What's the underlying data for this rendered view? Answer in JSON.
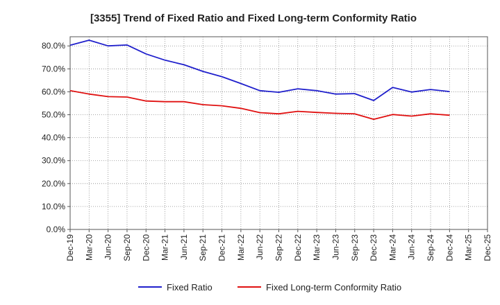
{
  "chart_data": {
    "type": "line",
    "title": "[3355]  Trend of Fixed Ratio and Fixed Long-term Conformity Ratio",
    "xlabel": "",
    "ylabel": "",
    "categories": [
      "Dec-19",
      "Mar-20",
      "Jun-20",
      "Sep-20",
      "Dec-20",
      "Mar-21",
      "Jun-21",
      "Sep-21",
      "Dec-21",
      "Mar-22",
      "Jun-22",
      "Sep-22",
      "Dec-22",
      "Mar-23",
      "Jun-23",
      "Sep-23",
      "Dec-23",
      "Mar-24",
      "Jun-24",
      "Sep-24",
      "Dec-24",
      "Mar-25",
      "Dec-25"
    ],
    "ylim": [
      0,
      84
    ],
    "yticks": [
      0,
      10,
      20,
      30,
      40,
      50,
      60,
      70,
      80
    ],
    "ytick_labels": [
      "0.0%",
      "10.0%",
      "20.0%",
      "30.0%",
      "40.0%",
      "50.0%",
      "60.0%",
      "70.0%",
      "80.0%"
    ],
    "grid": true,
    "legend_position": "bottom",
    "series": [
      {
        "name": "Fixed Ratio",
        "color": "#1f1fcc",
        "values": [
          80.3,
          82.5,
          80.0,
          80.4,
          76.5,
          73.8,
          71.8,
          68.9,
          66.6,
          63.6,
          60.5,
          59.8,
          61.3,
          60.5,
          59.0,
          59.2,
          56.2,
          61.9,
          59.9,
          61.0,
          60.1,
          null,
          null
        ]
      },
      {
        "name": "Fixed Long-term Conformity Ratio",
        "color": "#e01010",
        "values": [
          60.5,
          59.0,
          57.9,
          57.7,
          56.0,
          55.7,
          55.7,
          54.4,
          53.9,
          52.8,
          50.9,
          50.4,
          51.5,
          51.0,
          50.6,
          50.4,
          48.0,
          50.1,
          49.4,
          50.4,
          49.8,
          null,
          null
        ]
      }
    ]
  }
}
